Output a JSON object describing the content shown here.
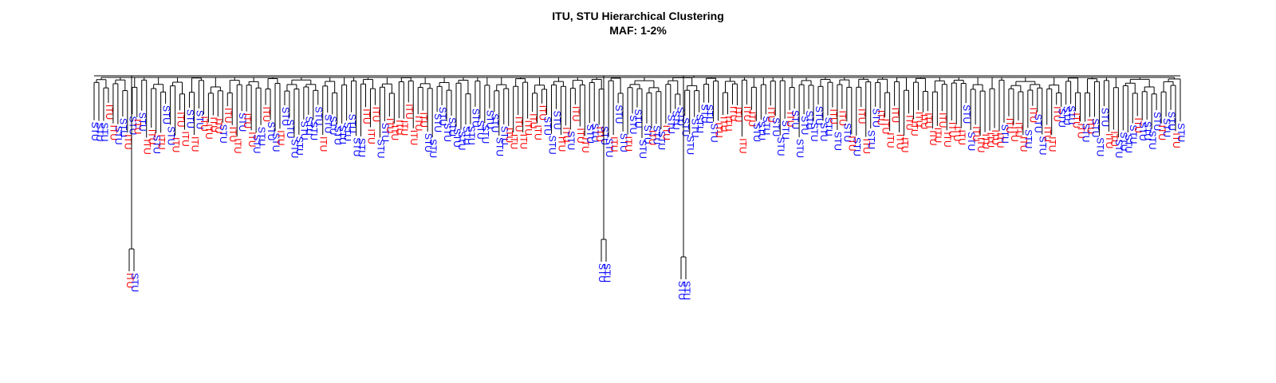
{
  "chart_data": {
    "type": "dendrogram",
    "title": "ITU, STU Hierarchical Clustering",
    "subtitle": "MAF: 1-2%",
    "xlabel": "",
    "ylabel": "",
    "populations": [
      "ITU",
      "STU"
    ],
    "colors": {
      "ITU": "#ff0000",
      "STU": "#0000ff",
      "branch": "#000000"
    },
    "leaves": [
      "STU",
      "STU",
      "STU",
      "ITU",
      "ITU",
      "STU",
      "STU",
      "ITU",
      "STU",
      "ITU",
      "STU",
      "ITU",
      "ITU",
      "STU",
      "ITU",
      "STU",
      "STU",
      "ITU",
      "ITU",
      "ITU",
      "STU",
      "ITU",
      "STU",
      "ITU",
      "ITU",
      "ITU",
      "ITU",
      "STU",
      "ITU",
      "ITU",
      "ITU",
      "STU",
      "ITU",
      "ITU",
      "STU",
      "STU",
      "ITU",
      "STU",
      "STU",
      "ITU",
      "STU",
      "STU",
      "STU",
      "STU",
      "STU",
      "STU",
      "STU",
      "STU",
      "ITU",
      "STU",
      "STU",
      "STU",
      "STU",
      "STU",
      "STU",
      "STU",
      "STU",
      "ITU",
      "ITU",
      "ITU",
      "STU",
      "STU",
      "ITU",
      "ITU",
      "ITU",
      "ITU",
      "ITU",
      "ITU",
      "ITU",
      "ITU",
      "STU",
      "STU",
      "STU",
      "STU",
      "STU",
      "STU",
      "STU",
      "STU",
      "STU",
      "STU",
      "STU",
      "STU",
      "STU",
      "STU",
      "STU",
      "STU",
      "STU",
      "ITU",
      "ITU",
      "ITU",
      "ITU",
      "ITU",
      "ITU",
      "ITU",
      "ITU",
      "STU",
      "STU",
      "STU",
      "ITU",
      "ITU",
      "STU",
      "ITU",
      "ITU",
      "ITU",
      "STU",
      "STU",
      "ITU",
      "STU",
      "STU",
      "ITU",
      "STU",
      "STU",
      "ITU",
      "STU",
      "STU",
      "STU",
      "STU",
      "ITU",
      "STU",
      "STU",
      "ITU",
      "STU",
      "STU",
      "STU",
      "STU",
      "STU",
      "STU",
      "STU",
      "STU",
      "STU",
      "STU",
      "ITU",
      "ITU",
      "ITU",
      "ITU",
      "ITU",
      "ITU",
      "ITU",
      "ITU",
      "STU",
      "STU",
      "STU",
      "ITU",
      "STU",
      "STU",
      "STU",
      "ITU",
      "STU",
      "STU",
      "STU",
      "STU",
      "STU",
      "STU",
      "STU",
      "STU",
      "ITU",
      "STU",
      "ITU",
      "STU",
      "ITU",
      "STU",
      "ITU",
      "ITU",
      "STU",
      "STU",
      "ITU",
      "ITU",
      "ITU",
      "ITU",
      "ITU",
      "ITU",
      "ITU",
      "ITU",
      "ITU",
      "ITU",
      "ITU",
      "ITU",
      "ITU",
      "ITU",
      "ITU",
      "ITU",
      "ITU",
      "ITU",
      "STU",
      "STU",
      "ITU",
      "ITU",
      "ITU",
      "ITU",
      "ITU",
      "ITU",
      "STU",
      "ITU",
      "ITU",
      "ITU",
      "ITU",
      "STU",
      "ITU",
      "STU",
      "STU",
      "ITU",
      "ITU",
      "ITU",
      "STU",
      "STU",
      "STU",
      "ITU",
      "ITU",
      "STU",
      "ITU",
      "STU",
      "STU",
      "STU",
      "ITU",
      "ITU",
      "STU",
      "STU",
      "STU",
      "STU",
      "ITU",
      "STU",
      "STU",
      "STU",
      "STU",
      "ITU",
      "STU",
      "STU",
      "ITU",
      "STU"
    ],
    "outgroups": [
      {
        "leaves": [
          "ITU",
          "STU"
        ],
        "merge_height": 0.05
      },
      {
        "leaves": [
          "STU",
          "STU"
        ],
        "merge_height": 0.07
      },
      {
        "leaves": [
          "STU",
          "STU"
        ],
        "merge_height": 0.15
      }
    ]
  }
}
